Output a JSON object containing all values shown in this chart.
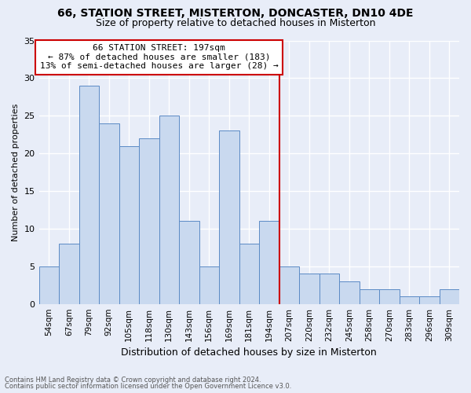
{
  "title": "66, STATION STREET, MISTERTON, DONCASTER, DN10 4DE",
  "subtitle": "Size of property relative to detached houses in Misterton",
  "xlabel": "Distribution of detached houses by size in Misterton",
  "ylabel": "Number of detached properties",
  "footnote1": "Contains HM Land Registry data © Crown copyright and database right 2024.",
  "footnote2": "Contains public sector information licensed under the Open Government Licence v3.0.",
  "categories": [
    "54sqm",
    "67sqm",
    "79sqm",
    "92sqm",
    "105sqm",
    "118sqm",
    "130sqm",
    "143sqm",
    "156sqm",
    "169sqm",
    "181sqm",
    "194sqm",
    "207sqm",
    "220sqm",
    "232sqm",
    "245sqm",
    "258sqm",
    "270sqm",
    "283sqm",
    "296sqm",
    "309sqm"
  ],
  "values": [
    5,
    8,
    29,
    24,
    21,
    22,
    25,
    11,
    5,
    23,
    8,
    11,
    5,
    4,
    4,
    3,
    2,
    2,
    1,
    1,
    2
  ],
  "bar_color": "#c9d9ef",
  "bar_edge_color": "#5b8ac5",
  "highlight_line_color": "#cc0000",
  "annotation_title": "66 STATION STREET: 197sqm",
  "annotation_line1": "← 87% of detached houses are smaller (183)",
  "annotation_line2": "13% of semi-detached houses are larger (28) →",
  "ylim": [
    0,
    35
  ],
  "yticks": [
    0,
    5,
    10,
    15,
    20,
    25,
    30,
    35
  ],
  "bg_color": "#e8edf8",
  "plot_bg_color": "#e8edf8",
  "grid_color": "#ffffff",
  "title_fontsize": 10,
  "subtitle_fontsize": 9
}
